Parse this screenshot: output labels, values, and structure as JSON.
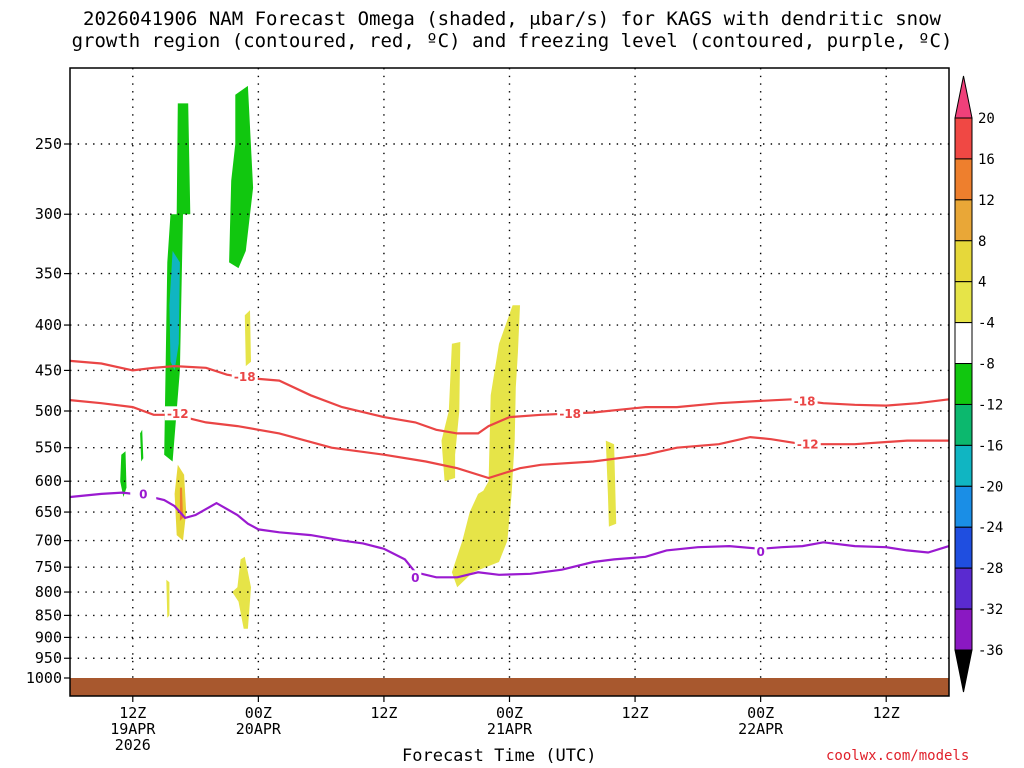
{
  "title": {
    "line1": "2026041906 NAM Forecast Omega (shaded, μbar/s) for KAGS with dendritic snow",
    "line2": "growth region (contoured, red, ºC) and freezing level (contoured, purple, ºC)"
  },
  "credit": "coolwx.com/models",
  "chart_data": {
    "type": "heatmap",
    "xlabel": "Forecast Time (UTC)",
    "ylabel": "",
    "x_units": "forecast hour from 2026041906",
    "xlim": [
      0,
      84
    ],
    "y_axis": {
      "scale": "log-pressure",
      "direction": "inverted",
      "ylim": [
        1000,
        200
      ],
      "ticks": [
        250,
        300,
        350,
        400,
        450,
        500,
        550,
        600,
        650,
        700,
        750,
        800,
        850,
        900,
        950,
        1000
      ]
    },
    "x_ticks": [
      {
        "hour": 6,
        "lines": [
          "12Z",
          "19APR",
          "2026"
        ]
      },
      {
        "hour": 18,
        "lines": [
          "00Z",
          "20APR"
        ]
      },
      {
        "hour": 30,
        "lines": [
          "12Z"
        ]
      },
      {
        "hour": 42,
        "lines": [
          "00Z",
          "21APR"
        ]
      },
      {
        "hour": 54,
        "lines": [
          "12Z"
        ]
      },
      {
        "hour": 66,
        "lines": [
          "00Z",
          "22APR"
        ]
      },
      {
        "hour": 78,
        "lines": [
          "12Z"
        ]
      }
    ],
    "grid": true,
    "colorbar": {
      "levels": [
        20,
        16,
        12,
        8,
        4,
        -4,
        -8,
        -12,
        -16,
        -20,
        -24,
        -28,
        -32,
        -36
      ],
      "colors": [
        "#f0407a",
        "#f04844",
        "#ee7f2d",
        "#e9a737",
        "#e6d83a",
        "#e6e448",
        "#ffffff",
        "#11c70f",
        "#0cb86e",
        "#10b5c2",
        "#1a8ee6",
        "#1f4ee0",
        "#5a2ad0",
        "#8a18c2",
        "#a30fc8",
        "#a8a8a8",
        "#000000"
      ]
    },
    "omega_regions": [
      {
        "value": -6,
        "color": "#11c70f",
        "points": [
          [
            10.3,
            225
          ],
          [
            11.3,
            225
          ],
          [
            11.5,
            300
          ],
          [
            10.8,
            300
          ],
          [
            10.5,
            450
          ],
          [
            9.8,
            570
          ],
          [
            9.0,
            560
          ],
          [
            9.3,
            340
          ],
          [
            9.6,
            300
          ],
          [
            10.2,
            300
          ]
        ]
      },
      {
        "value": -13,
        "color": "#10b5c2",
        "points": [
          [
            9.8,
            330
          ],
          [
            10.5,
            340
          ],
          [
            10.4,
            420
          ],
          [
            10.0,
            450
          ],
          [
            9.6,
            440
          ],
          [
            9.5,
            380
          ]
        ]
      },
      {
        "value": -6,
        "color": "#11c70f",
        "points": [
          [
            15.8,
            220
          ],
          [
            17.0,
            215
          ],
          [
            17.5,
            280
          ],
          [
            16.8,
            330
          ],
          [
            16.1,
            345
          ],
          [
            15.2,
            340
          ],
          [
            15.4,
            275
          ],
          [
            15.8,
            250
          ]
        ]
      },
      {
        "value": -6,
        "color": "#11c70f",
        "points": [
          [
            4.9,
            560
          ],
          [
            5.3,
            555
          ],
          [
            5.4,
            610
          ],
          [
            5.1,
            625
          ],
          [
            4.8,
            600
          ]
        ]
      },
      {
        "value": -6,
        "color": "#11c70f",
        "points": [
          [
            6.7,
            530
          ],
          [
            6.9,
            525
          ],
          [
            7.0,
            565
          ],
          [
            6.8,
            570
          ]
        ]
      },
      {
        "value": 5,
        "color": "#e6e448",
        "points": [
          [
            16.7,
            390
          ],
          [
            17.2,
            385
          ],
          [
            17.3,
            440
          ],
          [
            16.8,
            445
          ]
        ]
      },
      {
        "value": 6,
        "color": "#e6d83a",
        "points": [
          [
            10.3,
            575
          ],
          [
            10.9,
            590
          ],
          [
            11.1,
            650
          ],
          [
            10.8,
            700
          ],
          [
            10.2,
            690
          ],
          [
            10.0,
            620
          ]
        ]
      },
      {
        "value": 13,
        "color": "#ee7f2d",
        "points": [
          [
            10.5,
            610
          ],
          [
            10.7,
            610
          ],
          [
            10.8,
            660
          ],
          [
            10.5,
            665
          ]
        ]
      },
      {
        "value": 5,
        "color": "#e6e448",
        "points": [
          [
            9.2,
            775
          ],
          [
            9.5,
            780
          ],
          [
            9.5,
            850
          ],
          [
            9.3,
            855
          ]
        ]
      },
      {
        "value": 5,
        "color": "#e6e448",
        "points": [
          [
            16.3,
            735
          ],
          [
            16.7,
            730
          ],
          [
            17.3,
            790
          ],
          [
            17.0,
            880
          ],
          [
            16.6,
            880
          ],
          [
            16.1,
            820
          ],
          [
            15.5,
            800
          ],
          [
            16.0,
            790
          ]
        ]
      },
      {
        "value": 5,
        "color": "#e6e448",
        "points": [
          [
            36.5,
            420
          ],
          [
            37.3,
            418
          ],
          [
            37.2,
            500
          ],
          [
            36.8,
            560
          ],
          [
            36.8,
            595
          ],
          [
            35.8,
            600
          ],
          [
            35.5,
            540
          ],
          [
            36.2,
            500
          ]
        ]
      },
      {
        "value": 5,
        "color": "#e6e448",
        "points": [
          [
            41.0,
            420
          ],
          [
            42.3,
            380
          ],
          [
            43.0,
            380
          ],
          [
            42.8,
            430
          ],
          [
            42.6,
            470
          ],
          [
            42.5,
            540
          ],
          [
            42.2,
            620
          ],
          [
            41.8,
            700
          ],
          [
            41.0,
            740
          ],
          [
            38.5,
            760
          ],
          [
            37.0,
            790
          ],
          [
            36.5,
            760
          ],
          [
            37.5,
            700
          ],
          [
            38.2,
            650
          ],
          [
            39.0,
            620
          ],
          [
            39.5,
            615
          ],
          [
            40.0,
            600
          ],
          [
            40.2,
            480
          ]
        ]
      },
      {
        "value": 5,
        "color": "#e6e448",
        "points": [
          [
            51.2,
            540
          ],
          [
            52.0,
            545
          ],
          [
            52.2,
            670
          ],
          [
            51.5,
            675
          ],
          [
            51.4,
            620
          ]
        ]
      }
    ],
    "contours": [
      {
        "name": "-18",
        "color": "#ea4545",
        "label": "-18",
        "label_at": [
          16.7,
          457
        ],
        "points": [
          [
            0,
            439
          ],
          [
            3,
            442
          ],
          [
            6,
            450
          ],
          [
            8,
            447
          ],
          [
            10,
            445
          ],
          [
            13,
            447
          ],
          [
            15,
            455
          ],
          [
            17,
            459
          ],
          [
            20,
            462
          ],
          [
            23,
            480
          ],
          [
            26,
            495
          ],
          [
            30,
            508
          ],
          [
            33,
            515
          ],
          [
            35,
            525
          ],
          [
            37,
            530
          ],
          [
            39,
            530
          ],
          [
            40,
            520
          ],
          [
            42,
            508
          ],
          [
            45,
            505
          ],
          [
            50,
            502
          ],
          [
            55,
            495
          ],
          [
            58,
            495
          ],
          [
            62,
            490
          ],
          [
            66,
            487
          ],
          [
            69,
            485
          ],
          [
            72,
            490
          ],
          [
            75,
            492
          ],
          [
            78,
            493
          ],
          [
            81,
            490
          ],
          [
            84,
            485
          ]
        ]
      },
      {
        "name": "-18b",
        "color": "#ea4545",
        "label": "-18",
        "label_at": [
          47.8,
          503
        ],
        "points": []
      },
      {
        "name": "-18c",
        "color": "#ea4545",
        "label": "-18",
        "label_at": [
          70.2,
          487
        ],
        "points": []
      },
      {
        "name": "-12",
        "color": "#ea4545",
        "label": "-12",
        "label_at": [
          10.3,
          503
        ],
        "points": [
          [
            0,
            486
          ],
          [
            3,
            490
          ],
          [
            6,
            495
          ],
          [
            8,
            505
          ],
          [
            10,
            505
          ],
          [
            13,
            515
          ],
          [
            16,
            520
          ],
          [
            20,
            530
          ],
          [
            25,
            550
          ],
          [
            30,
            560
          ],
          [
            34,
            570
          ],
          [
            37,
            580
          ],
          [
            40,
            595
          ],
          [
            43,
            580
          ],
          [
            45,
            575
          ],
          [
            50,
            570
          ],
          [
            55,
            560
          ],
          [
            58,
            550
          ],
          [
            62,
            545
          ],
          [
            65,
            535
          ],
          [
            67,
            538
          ],
          [
            70,
            545
          ],
          [
            75,
            545
          ],
          [
            80,
            540
          ],
          [
            84,
            540
          ]
        ]
      },
      {
        "name": "-12b",
        "color": "#ea4545",
        "label": "-12",
        "label_at": [
          70.5,
          545
        ],
        "points": []
      },
      {
        "name": "0",
        "color": "#9a1ad0",
        "label": "0",
        "label_at": [
          7.0,
          620
        ],
        "points": [
          [
            0,
            625
          ],
          [
            3,
            620
          ],
          [
            5,
            618
          ],
          [
            7,
            622
          ],
          [
            9,
            630
          ],
          [
            10,
            640
          ],
          [
            11,
            660
          ],
          [
            12,
            655
          ],
          [
            13,
            645
          ],
          [
            14,
            635
          ],
          [
            16,
            655
          ],
          [
            17,
            670
          ],
          [
            18,
            680
          ],
          [
            20,
            685
          ],
          [
            23,
            690
          ],
          [
            26,
            700
          ],
          [
            28,
            705
          ],
          [
            30,
            715
          ],
          [
            32,
            735
          ],
          [
            33,
            760
          ],
          [
            35,
            770
          ],
          [
            37,
            770
          ],
          [
            39,
            760
          ],
          [
            41,
            765
          ],
          [
            44,
            763
          ],
          [
            47,
            755
          ],
          [
            50,
            740
          ],
          [
            52,
            735
          ],
          [
            55,
            730
          ],
          [
            57,
            718
          ],
          [
            60,
            712
          ],
          [
            63,
            710
          ],
          [
            66,
            715
          ],
          [
            68,
            712
          ],
          [
            70,
            710
          ],
          [
            72,
            703
          ],
          [
            75,
            710
          ],
          [
            78,
            712
          ],
          [
            80,
            718
          ],
          [
            82,
            722
          ],
          [
            84,
            710
          ]
        ]
      }
    ],
    "zero_labels": [
      [
        7.0,
        620
      ],
      [
        33.0,
        770
      ],
      [
        66.0,
        720
      ]
    ],
    "terrain_pressure_hpa": 1000
  }
}
